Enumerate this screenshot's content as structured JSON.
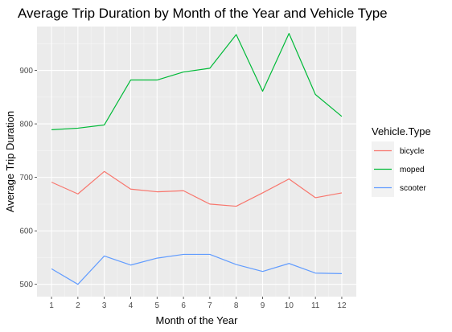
{
  "chart_data": {
    "type": "line",
    "title": "Average Trip Duration by Month of the Year and Vehicle Type",
    "xlabel": "Month of the Year",
    "ylabel": "Average Trip Duration",
    "x": [
      1,
      2,
      3,
      4,
      5,
      6,
      7,
      8,
      9,
      10,
      11,
      12
    ],
    "xlim": [
      0.45,
      12.55
    ],
    "ylim": [
      477,
      982
    ],
    "y_major_ticks": [
      500,
      600,
      700,
      800,
      900
    ],
    "y_minor_ticks": [
      550,
      650,
      750,
      850,
      950
    ],
    "grid": true,
    "legend": {
      "title": "Vehicle.Type",
      "placement": "right"
    },
    "series": [
      {
        "name": "bicycle",
        "color": "#F8766D",
        "values": [
          691,
          669,
          711,
          678,
          673,
          675,
          650,
          646,
          671,
          697,
          662,
          671
        ]
      },
      {
        "name": "moped",
        "color": "#00BA38",
        "values": [
          789,
          792,
          798,
          882,
          882,
          897,
          904,
          967,
          861,
          969,
          855,
          814
        ]
      },
      {
        "name": "scooter",
        "color": "#619CFF",
        "values": [
          529,
          500,
          553,
          536,
          549,
          556,
          556,
          537,
          524,
          539,
          521,
          520
        ]
      }
    ],
    "colors": {
      "panel_background": "#EBEBEB",
      "grid_major": "#FFFFFF",
      "grid_minor": "#F5F5F5",
      "legend_key_background": "#F2F2F2"
    }
  }
}
